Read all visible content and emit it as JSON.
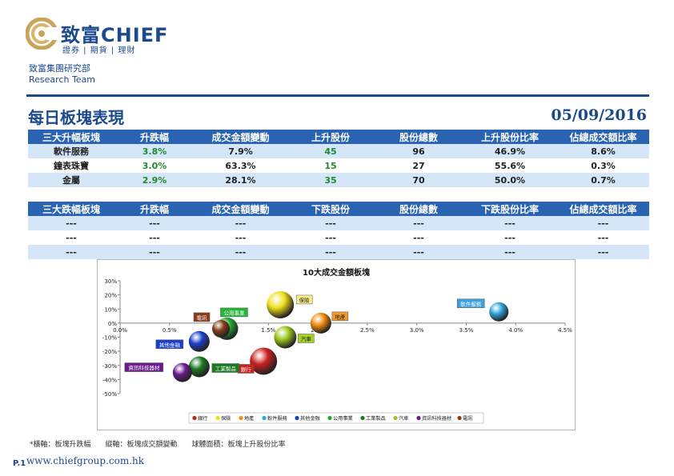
{
  "header": {
    "brand_cn": "致富",
    "brand_en": "CHIEF",
    "brand_sub": "證券 | 期貨 | 理財",
    "dept_cn": "致富集團研究部",
    "dept_en": "Research Team",
    "title": "每日板塊表現",
    "date": "05/09/2016"
  },
  "up_table": {
    "headers": [
      "三大升幅板塊",
      "升跌幅",
      "成交金額變動",
      "上升股份",
      "股份總數",
      "上升股份比率",
      "佔總成交額比率"
    ],
    "rows": [
      [
        "軟件服務",
        "3.8%",
        "7.9%",
        "45",
        "96",
        "46.9%",
        "8.6%"
      ],
      [
        "鐘表珠寶",
        "3.0%",
        "63.3%",
        "15",
        "27",
        "55.6%",
        "0.3%"
      ],
      [
        "金屬",
        "2.9%",
        "28.1%",
        "35",
        "70",
        "50.0%",
        "0.7%"
      ]
    ]
  },
  "down_table": {
    "headers": [
      "三大跌幅板塊",
      "升跌幅",
      "成交金額變動",
      "下跌股份",
      "股份總數",
      "下跌股份比率",
      "佔總成交額比率"
    ],
    "rows": [
      [
        "---",
        "---",
        "---",
        "---",
        "---",
        "---",
        "---"
      ],
      [
        "---",
        "---",
        "---",
        "---",
        "---",
        "---",
        "---"
      ],
      [
        "---",
        "---",
        "---",
        "---",
        "---",
        "---",
        "---"
      ]
    ]
  },
  "chart_data": {
    "type": "bubble",
    "title": "10大成交金額板塊",
    "xlabel": "",
    "ylabel": "",
    "x_ticks": [
      "0.0%",
      "0.5%",
      "1.0%",
      "1.5%",
      "2.0%",
      "2.5%",
      "3.0%",
      "3.5%",
      "4.0%",
      "4.5%"
    ],
    "y_ticks": [
      "30%",
      "20%",
      "10%",
      "0%",
      "-10%",
      "-20%",
      "-30%",
      "-40%",
      "-50%"
    ],
    "xlim": [
      0,
      4.5
    ],
    "ylim": [
      -50,
      30
    ],
    "grid": false,
    "legend_position": "bottom",
    "series": [
      {
        "name": "銀行",
        "label": "銀行",
        "x": 1.45,
        "y": -27,
        "color": "#cc1f1f",
        "label_bg": "#cc1f1f"
      },
      {
        "name": "保險",
        "label": "保險",
        "x": 1.62,
        "y": 13,
        "color": "#f2e01a",
        "label_bg": "#f7ee8a"
      },
      {
        "name": "地產",
        "label": "地產",
        "x": 2.03,
        "y": 0,
        "color": "#f28c0e",
        "label_bg": "#f39a2a"
      },
      {
        "name": "軟件服務",
        "label": "軟件服務",
        "x": 3.83,
        "y": 8,
        "color": "#2fa3dd",
        "label_bg": "#3c9fe0"
      },
      {
        "name": "其他金融",
        "label": "其他金融",
        "x": 0.8,
        "y": -13,
        "color": "#1c3fc9",
        "label_bg": "#1c3fc9"
      },
      {
        "name": "公用事業",
        "label": "公用事業",
        "x": 1.08,
        "y": -4,
        "color": "#1eab2e",
        "label_bg": "#27b43a"
      },
      {
        "name": "工業製品",
        "label": "工業製品",
        "x": 0.8,
        "y": -31,
        "color": "#1a7a22",
        "label_bg": "#1a7a22"
      },
      {
        "name": "汽車",
        "label": "汽車",
        "x": 1.67,
        "y": -10,
        "color": "#9ac61c",
        "label_bg": "#a6cf2a"
      },
      {
        "name": "資訊科技器材",
        "label": "資訊科技器材",
        "x": 0.63,
        "y": -35,
        "color": "#6a1a8a",
        "label_bg": "#6a1a8a"
      },
      {
        "name": "電訊",
        "label": "電訊",
        "x": 1.02,
        "y": -4,
        "color": "#8b3a1a",
        "label_bg": "#8b3a1a"
      }
    ]
  },
  "footer": {
    "note": "*橫軸：板塊升跌幅　　縱軸：板塊成交額變動　　球體面積：板塊上升股份比率",
    "page": "P.1",
    "url": "www.chiefgroup.com.hk"
  }
}
